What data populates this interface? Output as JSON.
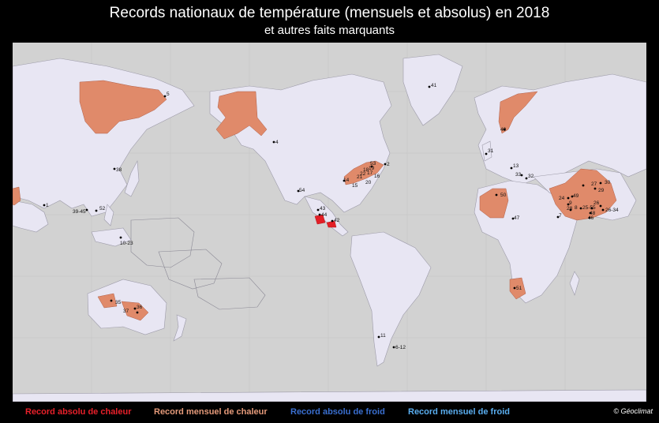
{
  "title": "Records nationaux de température (mensuels et absolus) en 2018",
  "subtitle": "et autres faits marquants",
  "legend": [
    {
      "label": "Record absolu de chaleur",
      "color": "#e8202a"
    },
    {
      "label": "Record mensuel de chaleur",
      "color": "#e59a7a"
    },
    {
      "label": "Record absolu de froid",
      "color": "#3a6fd0"
    },
    {
      "label": "Record mensuel de froid",
      "color": "#5aaef0"
    }
  ],
  "credit": "© Géoclimat",
  "colors": {
    "ocean": "#d2d2d2",
    "land": "#e8e6f3",
    "monthly_heat": "#e08a6a",
    "absolute_heat": "#e31e26",
    "border": "#9c9aa8"
  },
  "labels": [
    "5",
    "4",
    "41",
    "40",
    "31",
    "13",
    "33",
    "32",
    "27",
    "29",
    "30",
    "24",
    "49",
    "9",
    "28",
    "8",
    "25-55",
    "26",
    "26-34",
    "48",
    "46",
    "7",
    "50",
    "47",
    "51",
    "52",
    "39-45",
    "1",
    "38",
    "2",
    "53",
    "14",
    "15",
    "16",
    "17",
    "18",
    "19",
    "20",
    "21",
    "22",
    "54",
    "43",
    "44",
    "42",
    "10-23",
    "35",
    "36",
    "37",
    "11",
    "6-12"
  ]
}
